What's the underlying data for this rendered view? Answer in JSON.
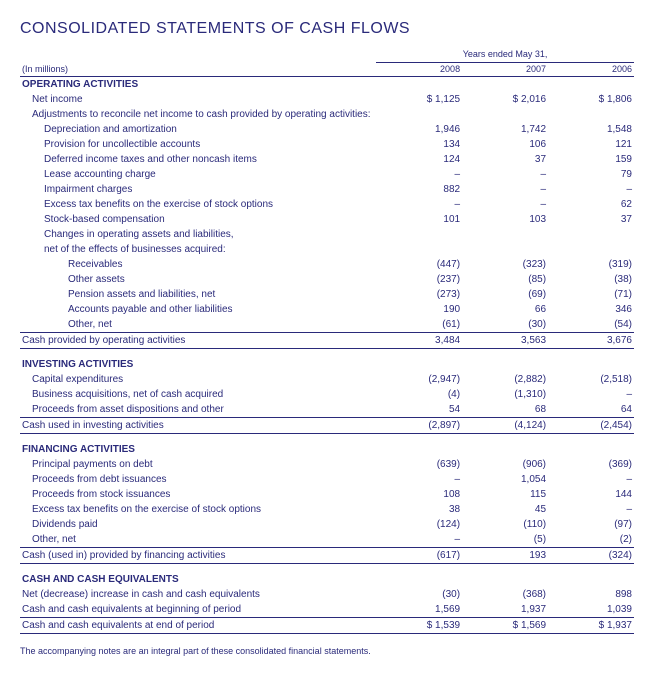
{
  "title": "CONSOLIDATED STATEMENTS OF CASH FLOWS",
  "unit_note": "(In millions)",
  "period_label": "Years ended May 31,",
  "years": [
    "2008",
    "2007",
    "2006"
  ],
  "sections": [
    {
      "header": "OPERATING ACTIVITIES",
      "rows": [
        {
          "label": "Net income",
          "indent": 1,
          "vals": [
            "$ 1,125",
            "$ 2,016",
            "$ 1,806"
          ]
        },
        {
          "label": "Adjustments to reconcile net income to cash provided by operating activities:",
          "indent": 1,
          "vals": [
            "",
            "",
            ""
          ]
        },
        {
          "label": "Depreciation and amortization",
          "indent": 2,
          "vals": [
            "1,946",
            "1,742",
            "1,548"
          ]
        },
        {
          "label": "Provision for uncollectible accounts",
          "indent": 2,
          "vals": [
            "134",
            "106",
            "121"
          ]
        },
        {
          "label": "Deferred income taxes and other noncash items",
          "indent": 2,
          "vals": [
            "124",
            "37",
            "159"
          ]
        },
        {
          "label": "Lease accounting charge",
          "indent": 2,
          "vals": [
            "–",
            "–",
            "79"
          ]
        },
        {
          "label": "Impairment charges",
          "indent": 2,
          "vals": [
            "882",
            "–",
            "–"
          ]
        },
        {
          "label": "Excess tax benefits on the exercise of stock options",
          "indent": 2,
          "vals": [
            "–",
            "–",
            "62"
          ]
        },
        {
          "label": "Stock-based compensation",
          "indent": 2,
          "vals": [
            "101",
            "103",
            "37"
          ]
        },
        {
          "label": "Changes in operating assets and liabilities,",
          "indent": 2,
          "vals": [
            "",
            "",
            ""
          ]
        },
        {
          "label": "net of the effects of businesses acquired:",
          "indent": 2,
          "vals": [
            "",
            "",
            ""
          ]
        },
        {
          "label": "Receivables",
          "indent": 3,
          "vals": [
            "(447)",
            "(323)",
            "(319)"
          ]
        },
        {
          "label": "Other assets",
          "indent": 3,
          "vals": [
            "(237)",
            "(85)",
            "(38)"
          ]
        },
        {
          "label": "Pension assets and liabilities, net",
          "indent": 3,
          "vals": [
            "(273)",
            "(69)",
            "(71)"
          ]
        },
        {
          "label": "Accounts payable and other liabilities",
          "indent": 3,
          "vals": [
            "190",
            "66",
            "346"
          ]
        },
        {
          "label": "Other, net",
          "indent": 3,
          "vals": [
            "(61)",
            "(30)",
            "(54)"
          ]
        }
      ],
      "subtotal": {
        "label": "Cash provided by operating activities",
        "vals": [
          "3,484",
          "3,563",
          "3,676"
        ]
      }
    },
    {
      "header": "INVESTING ACTIVITIES",
      "rows": [
        {
          "label": "Capital expenditures",
          "indent": 1,
          "vals": [
            "(2,947)",
            "(2,882)",
            "(2,518)"
          ]
        },
        {
          "label": "Business acquisitions, net of cash acquired",
          "indent": 1,
          "vals": [
            "(4)",
            "(1,310)",
            "–"
          ]
        },
        {
          "label": "Proceeds from asset dispositions and other",
          "indent": 1,
          "vals": [
            "54",
            "68",
            "64"
          ]
        }
      ],
      "subtotal": {
        "label": "Cash used in investing activities",
        "vals": [
          "(2,897)",
          "(4,124)",
          "(2,454)"
        ]
      }
    },
    {
      "header": "FINANCING ACTIVITIES",
      "rows": [
        {
          "label": "Principal payments on debt",
          "indent": 1,
          "vals": [
            "(639)",
            "(906)",
            "(369)"
          ]
        },
        {
          "label": "Proceeds from debt issuances",
          "indent": 1,
          "vals": [
            "–",
            "1,054",
            "–"
          ]
        },
        {
          "label": "Proceeds from stock issuances",
          "indent": 1,
          "vals": [
            "108",
            "115",
            "144"
          ]
        },
        {
          "label": "Excess tax benefits on the exercise of stock options",
          "indent": 1,
          "vals": [
            "38",
            "45",
            "–"
          ]
        },
        {
          "label": "Dividends paid",
          "indent": 1,
          "vals": [
            "(124)",
            "(110)",
            "(97)"
          ]
        },
        {
          "label": "Other, net",
          "indent": 1,
          "vals": [
            "–",
            "(5)",
            "(2)"
          ]
        }
      ],
      "subtotal": {
        "label": "Cash (used in) provided by financing activities",
        "vals": [
          "(617)",
          "193",
          "(324)"
        ]
      }
    }
  ],
  "cash_section": {
    "header": "CASH AND CASH EQUIVALENTS",
    "rows": [
      {
        "label": "Net (decrease) increase in cash and cash equivalents",
        "vals": [
          "(30)",
          "(368)",
          "898"
        ]
      },
      {
        "label": "Cash and cash equivalents at beginning of period",
        "vals": [
          "1,569",
          "1,937",
          "1,039"
        ]
      }
    ],
    "total": {
      "label": "Cash and cash equivalents at end of period",
      "vals": [
        "$ 1,539",
        "$ 1,569",
        "$ 1,937"
      ]
    }
  },
  "footnote": "The accompanying notes are an integral part of these consolidated financial statements."
}
